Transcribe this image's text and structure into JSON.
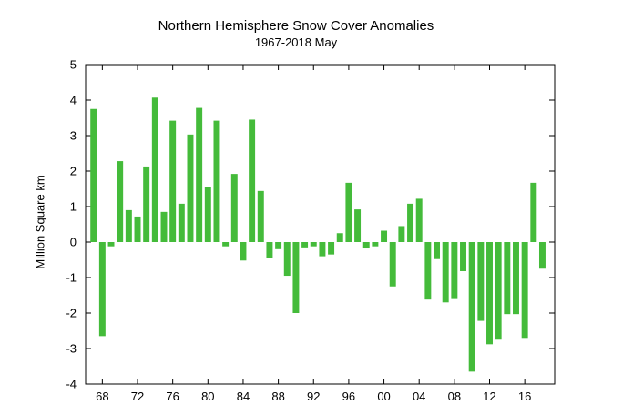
{
  "chart_data": {
    "type": "bar",
    "title": "Northern Hemisphere Snow Cover Anomalies",
    "subtitle": "1967-2018 May",
    "xlabel": "",
    "ylabel": "Million Square km",
    "ylim": [
      -4,
      5
    ],
    "yticks": [
      5,
      4,
      3,
      2,
      1,
      0,
      -1,
      -2,
      -3,
      -4
    ],
    "xlim": [
      1966,
      1969.5
    ],
    "xticks": [
      {
        "year": 1968,
        "label": "68"
      },
      {
        "year": 1972,
        "label": "72"
      },
      {
        "year": 1976,
        "label": "76"
      },
      {
        "year": 1980,
        "label": "80"
      },
      {
        "year": 1984,
        "label": "84"
      },
      {
        "year": 1988,
        "label": "88"
      },
      {
        "year": 1992,
        "label": "92"
      },
      {
        "year": 1996,
        "label": "96"
      },
      {
        "year": 2000,
        "label": "00"
      },
      {
        "year": 2004,
        "label": "04"
      },
      {
        "year": 2008,
        "label": "08"
      },
      {
        "year": 2012,
        "label": "12"
      },
      {
        "year": 2016,
        "label": "16"
      }
    ],
    "color": "#44bb3a",
    "grid": false,
    "x": [
      1967,
      1968,
      1969,
      1970,
      1971,
      1972,
      1973,
      1974,
      1975,
      1976,
      1977,
      1978,
      1979,
      1980,
      1981,
      1982,
      1983,
      1984,
      1985,
      1986,
      1987,
      1988,
      1989,
      1990,
      1991,
      1992,
      1993,
      1994,
      1995,
      1996,
      1997,
      1998,
      1999,
      2000,
      2001,
      2002,
      2003,
      2004,
      2005,
      2006,
      2007,
      2008,
      2009,
      2010,
      2011,
      2012,
      2013,
      2014,
      2015,
      2016,
      2017,
      2018
    ],
    "values": [
      3.75,
      -2.65,
      -0.12,
      2.28,
      0.9,
      0.72,
      2.13,
      4.07,
      0.85,
      3.42,
      1.08,
      3.03,
      3.78,
      1.55,
      3.42,
      -0.12,
      1.92,
      -0.52,
      3.45,
      1.44,
      -0.45,
      -0.2,
      -0.95,
      -2.0,
      -0.15,
      -0.12,
      -0.4,
      -0.35,
      0.25,
      1.67,
      0.92,
      -0.18,
      -0.12,
      0.32,
      -1.25,
      0.45,
      1.08,
      1.22,
      -1.62,
      -0.48,
      -1.7,
      -1.58,
      -0.82,
      -3.65,
      -2.22,
      -2.88,
      -2.75,
      -2.03,
      -2.03,
      -2.7,
      1.67,
      -0.75
    ]
  }
}
